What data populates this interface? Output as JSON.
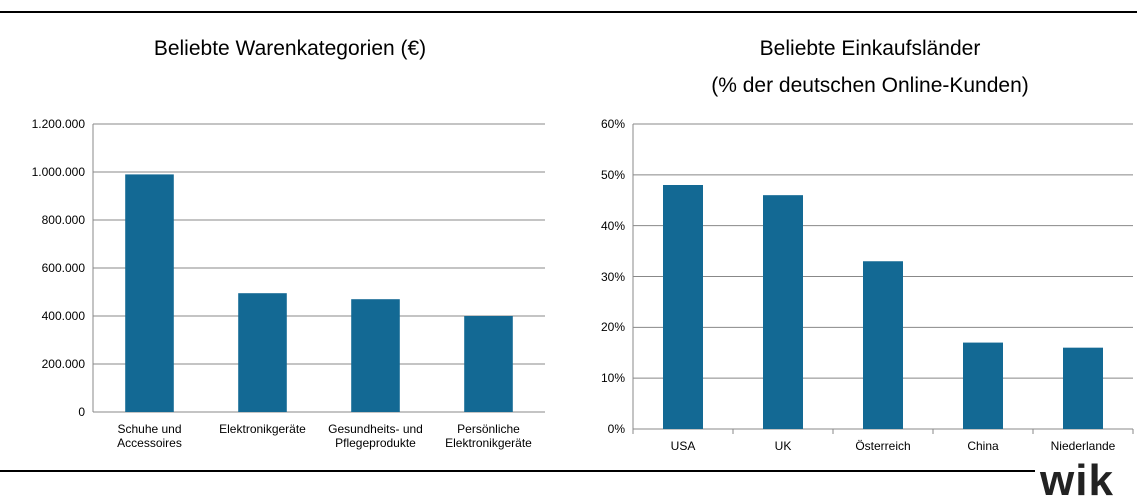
{
  "chart_data": [
    {
      "type": "bar",
      "title": "Beliebte Warenkategorien (€)",
      "categories": [
        "Schuhe und Accessoires",
        "Elektronikgeräte",
        "Gesundheits- und Pflegeprodukte",
        "Persönliche Elektronikgeräte"
      ],
      "values": [
        990000,
        495000,
        470000,
        400000
      ],
      "color": "#136994",
      "ylim": [
        0,
        1200000
      ],
      "yticks": [
        0,
        {
          "value": 200000,
          "label": "200.000"
        },
        {
          "value": 400000,
          "label": "400.000"
        },
        {
          "value": 600000,
          "label": "600.000"
        },
        {
          "value": 800000,
          "label": "800.000"
        },
        {
          "value": 1000000,
          "label": "1.000.000"
        },
        {
          "value": 1200000,
          "label": "1.200.000"
        }
      ],
      "grid": true
    },
    {
      "type": "bar",
      "title": "Beliebte Einkaufsländer\n(% der deutschen Online-Kunden)",
      "categories": [
        "USA",
        "UK",
        "Österreich",
        "China",
        "Niederlande"
      ],
      "values": [
        48,
        46,
        33,
        17,
        16
      ],
      "color": "#136994",
      "ylim": [
        0,
        60
      ],
      "yticks": [
        {
          "value": 0,
          "label": "0%"
        },
        {
          "value": 10,
          "label": "10%"
        },
        {
          "value": 20,
          "label": "20%"
        },
        {
          "value": 30,
          "label": "30%"
        },
        {
          "value": 40,
          "label": "40%"
        },
        {
          "value": 50,
          "label": "50%"
        },
        {
          "value": 60,
          "label": "60%"
        }
      ],
      "grid": true
    }
  ],
  "logo": "wik"
}
